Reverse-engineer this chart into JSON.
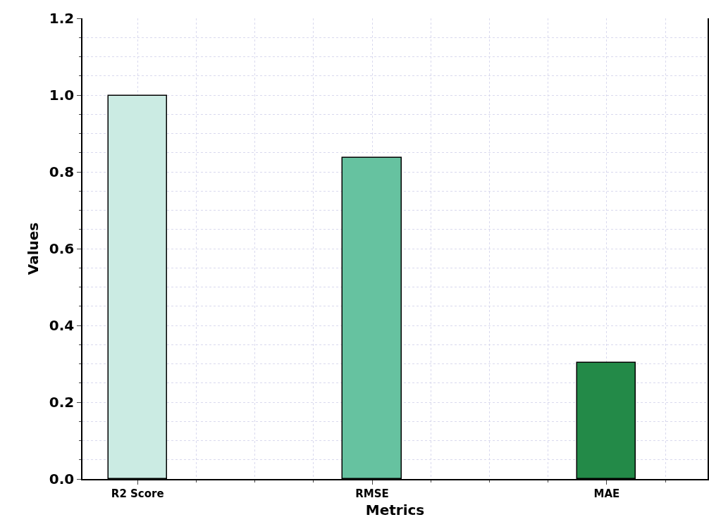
{
  "chart_data": {
    "type": "bar",
    "xlabel": "Metrics",
    "ylabel": "Values",
    "categories": [
      "R2 Score",
      "RMSE",
      "MAE"
    ],
    "values": [
      0.998,
      0.837,
      0.303
    ],
    "colors": [
      "#cbebe3",
      "#66c2a0",
      "#238a48"
    ],
    "ylim": [
      0,
      1.2
    ],
    "yticks": [
      {
        "value": 0,
        "label": "0.0"
      },
      0.2,
      0.4,
      0.6,
      0.8,
      {
        "value": 1,
        "label": "1.0"
      },
      1.2
    ],
    "grid": true
  }
}
